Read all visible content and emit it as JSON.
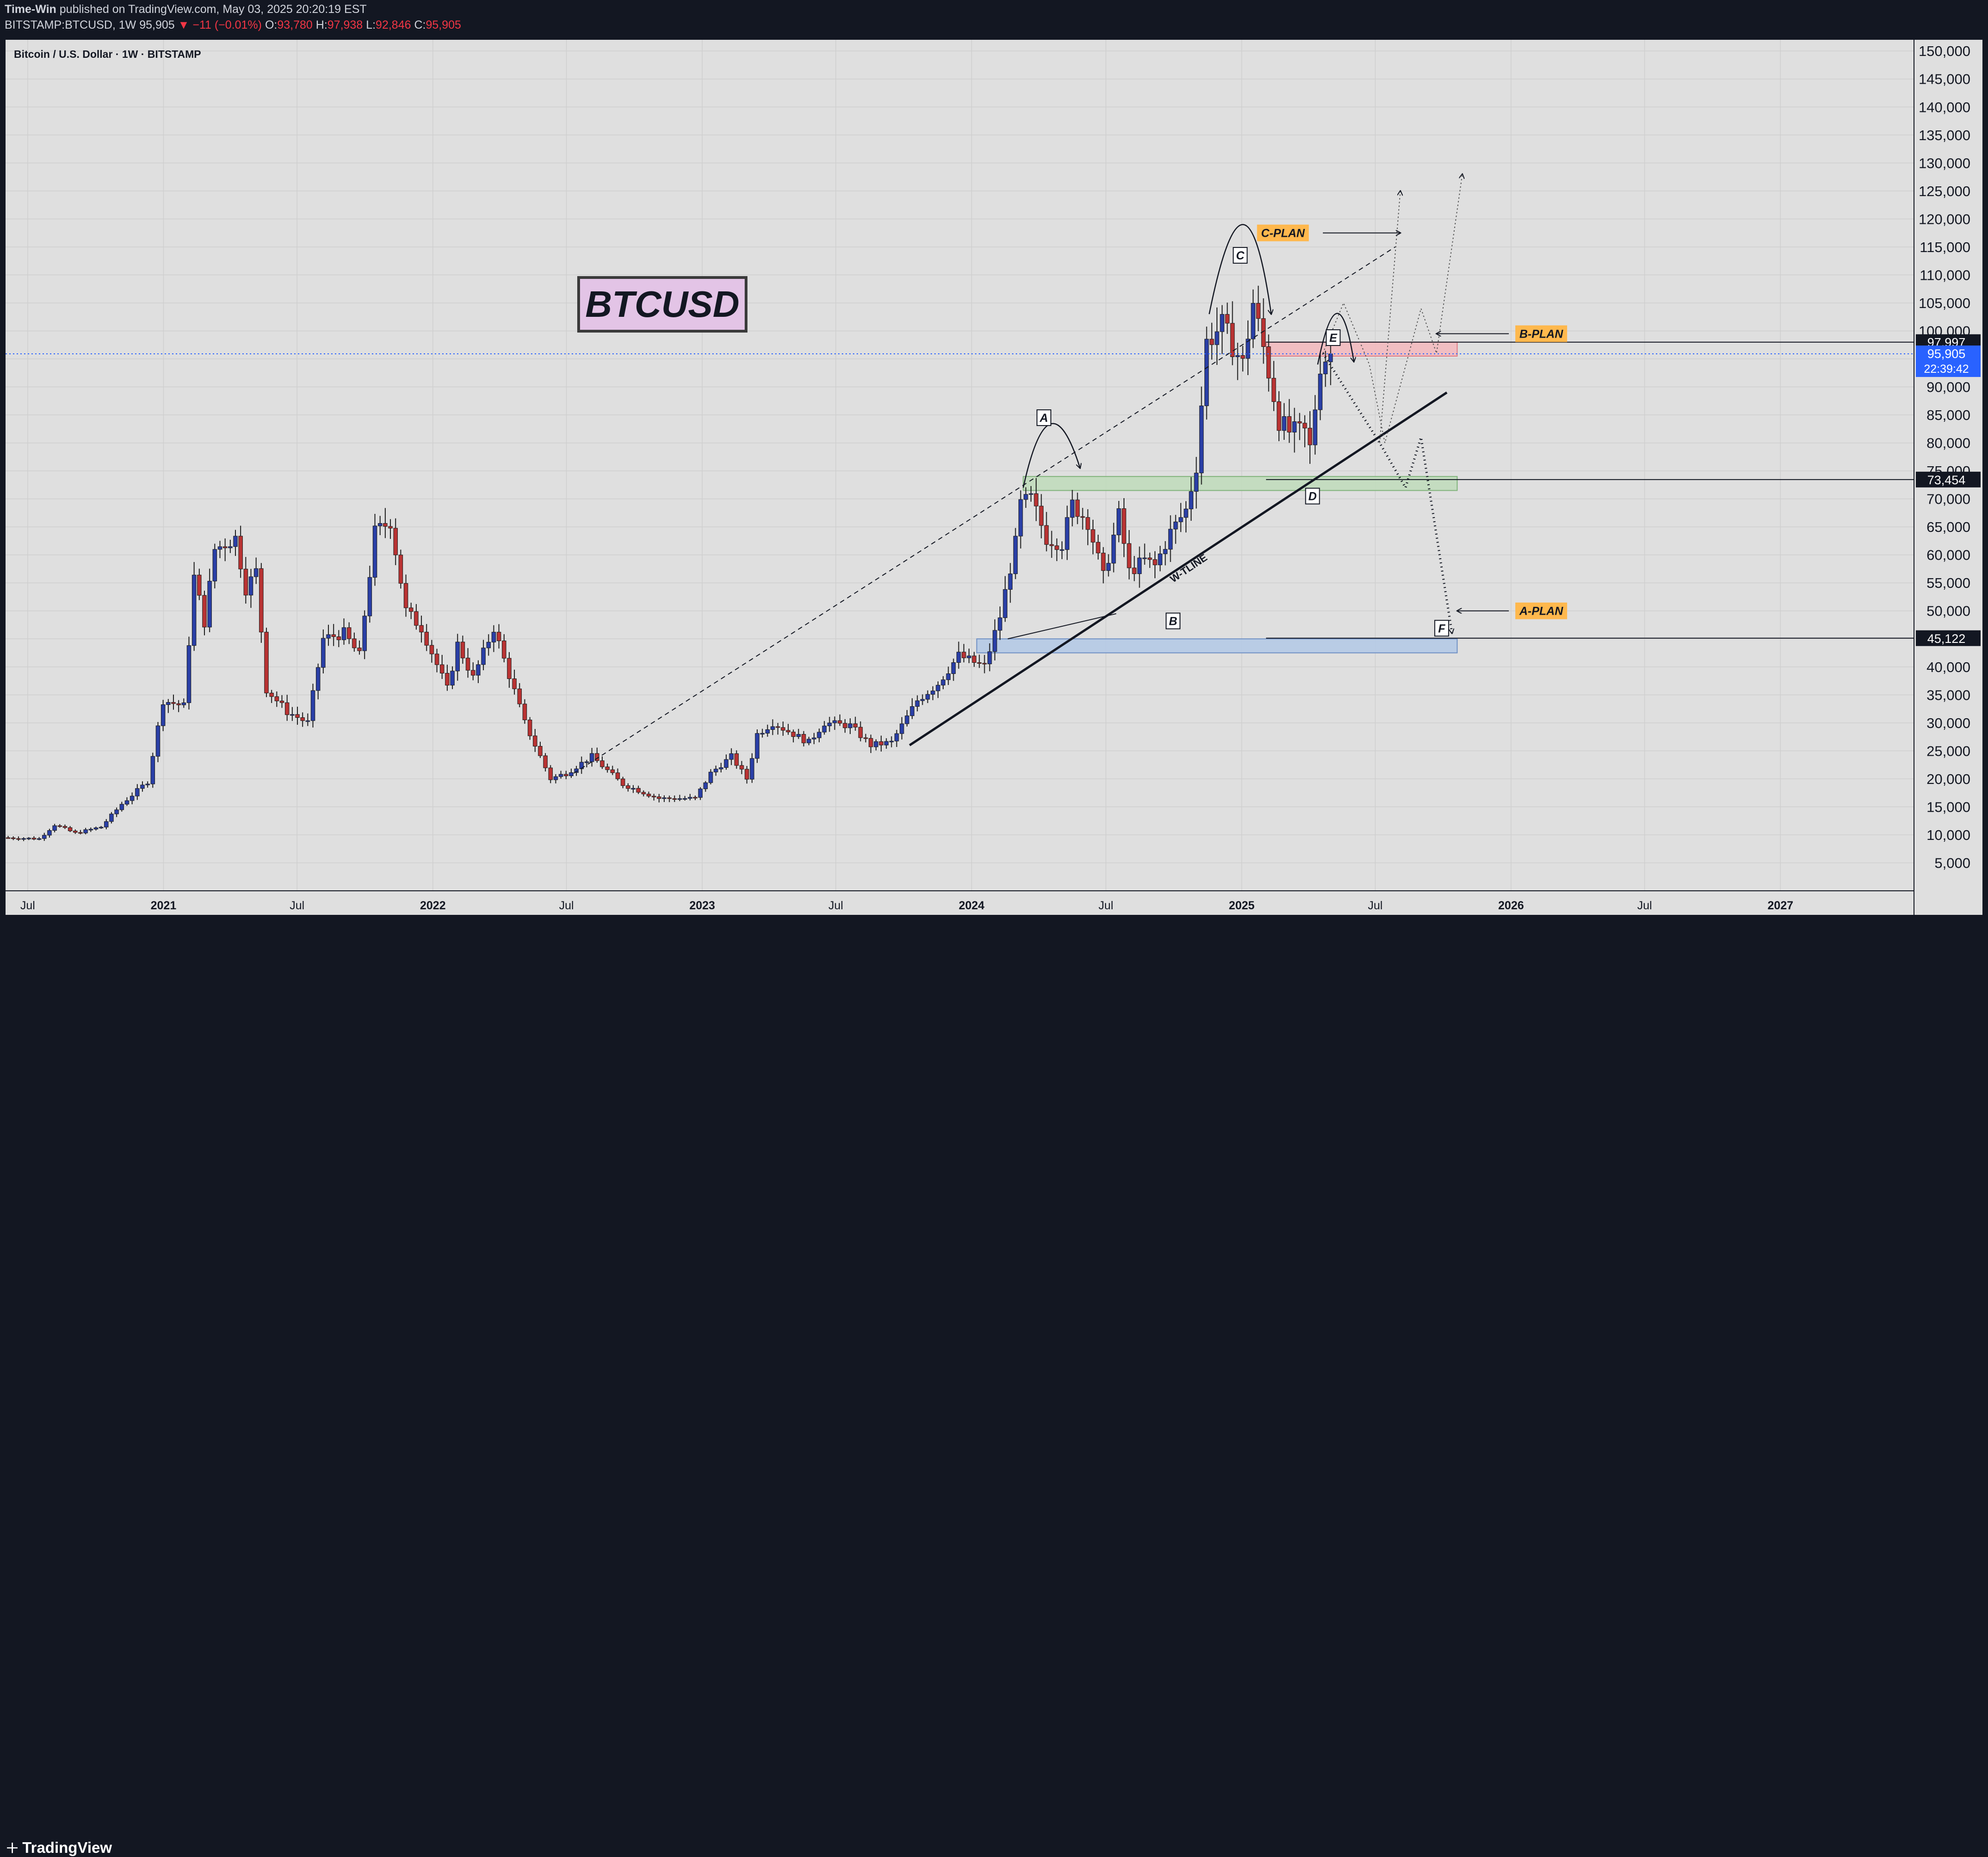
{
  "header": {
    "author": "Time-Win",
    "published": "published on TradingView.com, May 03, 2025 20:20:19 EST",
    "symbol": "BITSTAMP:BTCUSD, 1W",
    "last": "95,905",
    "change": "▼ −11 (−0.01%)",
    "o_label": "O:",
    "o_value": "93,780",
    "h_label": "H:",
    "h_value": "97,938",
    "l_label": "L:",
    "l_value": "92,846",
    "c_label": "C:",
    "c_value": "95,905"
  },
  "footer": {
    "brand": "TradingView"
  },
  "colors": {
    "background": "#dfdfdf",
    "bull": "#2a3fa6",
    "bear": "#b93333",
    "zone_red": "#f4b9bd",
    "zone_green": "#bfdcbb",
    "zone_blue": "#b3c9e6",
    "plan_label": "#ffb84d",
    "price_tag": "#2962ff"
  },
  "chart_data": {
    "type": "candlestick",
    "title": "Bitcoin / U.S. Dollar · 1W · BITSTAMP",
    "xrange": [
      "2020-06",
      "2027-07"
    ],
    "ylim": [
      0,
      152000
    ],
    "y_ticks": [
      5000,
      10000,
      15000,
      20000,
      25000,
      30000,
      35000,
      40000,
      45000,
      50000,
      55000,
      60000,
      65000,
      70000,
      75000,
      80000,
      85000,
      90000,
      95000,
      100000,
      105000,
      110000,
      115000,
      120000,
      125000,
      130000,
      135000,
      140000,
      145000,
      150000
    ],
    "x_ticks": [
      {
        "label": "Jul",
        "t": "2020-07",
        "year": false
      },
      {
        "label": "2021",
        "t": "2021-01",
        "year": true
      },
      {
        "label": "Jul",
        "t": "2021-07",
        "year": false
      },
      {
        "label": "2022",
        "t": "2022-01",
        "year": true
      },
      {
        "label": "Jul",
        "t": "2022-07",
        "year": false
      },
      {
        "label": "2023",
        "t": "2023-01",
        "year": true
      },
      {
        "label": "Jul",
        "t": "2023-07",
        "year": false
      },
      {
        "label": "2024",
        "t": "2024-01",
        "year": true
      },
      {
        "label": "Jul",
        "t": "2024-07",
        "year": false
      },
      {
        "label": "2025",
        "t": "2025-01",
        "year": true
      },
      {
        "label": "Jul",
        "t": "2025-07",
        "year": false
      },
      {
        "label": "2026",
        "t": "2026-01",
        "year": true
      },
      {
        "label": "Jul",
        "t": "2026-07",
        "year": false
      },
      {
        "label": "2027",
        "t": "2027-01",
        "year": true
      }
    ],
    "price_path": [
      [
        "2020-06-01",
        9500
      ],
      [
        "2020-07-20",
        9300
      ],
      [
        "2020-08-10",
        11800
      ],
      [
        "2020-09-07",
        10300
      ],
      [
        "2020-10-12",
        11400
      ],
      [
        "2020-11-09",
        15500
      ],
      [
        "2020-12-14",
        19500
      ],
      [
        "2021-01-04",
        34000
      ],
      [
        "2021-02-01",
        33000
      ],
      [
        "2021-02-15",
        56000
      ],
      [
        "2021-03-01",
        48000
      ],
      [
        "2021-03-15",
        61000
      ],
      [
        "2021-04-12",
        63000
      ],
      [
        "2021-04-26",
        54000
      ],
      [
        "2021-05-10",
        57000
      ],
      [
        "2021-05-24",
        36000
      ],
      [
        "2021-06-21",
        32000
      ],
      [
        "2021-07-19",
        30000
      ],
      [
        "2021-08-09",
        45000
      ],
      [
        "2021-09-06",
        46000
      ],
      [
        "2021-09-27",
        42000
      ],
      [
        "2021-10-18",
        64000
      ],
      [
        "2021-11-08",
        66000
      ],
      [
        "2021-11-29",
        50000
      ],
      [
        "2021-12-20",
        47000
      ],
      [
        "2022-01-24",
        36000
      ],
      [
        "2022-02-07",
        44000
      ],
      [
        "2022-02-28",
        38000
      ],
      [
        "2022-03-28",
        47000
      ],
      [
        "2022-05-09",
        30000
      ],
      [
        "2022-06-13",
        20000
      ],
      [
        "2022-07-04",
        21000
      ],
      [
        "2022-08-08",
        24000
      ],
      [
        "2022-09-19",
        19000
      ],
      [
        "2022-11-07",
        16500
      ],
      [
        "2022-12-26",
        16500
      ],
      [
        "2023-01-16",
        21000
      ],
      [
        "2023-02-13",
        24000
      ],
      [
        "2023-03-06",
        20000
      ],
      [
        "2023-03-20",
        28000
      ],
      [
        "2023-04-10",
        30000
      ],
      [
        "2023-05-29",
        26500
      ],
      [
        "2023-06-19",
        30000
      ],
      [
        "2023-07-24",
        29500
      ],
      [
        "2023-08-21",
        26000
      ],
      [
        "2023-09-18",
        26500
      ],
      [
        "2023-10-23",
        34000
      ],
      [
        "2023-11-20",
        37000
      ],
      [
        "2023-12-18",
        42000
      ],
      [
        "2024-01-22",
        40000
      ],
      [
        "2024-02-12",
        49000
      ],
      [
        "2024-03-04",
        62000
      ],
      [
        "2024-03-11",
        69000
      ],
      [
        "2024-03-25",
        70000
      ],
      [
        "2024-04-15",
        63000
      ],
      [
        "2024-05-06",
        62000
      ],
      [
        "2024-05-20",
        69000
      ],
      [
        "2024-06-10",
        66000
      ],
      [
        "2024-07-01",
        56000
      ],
      [
        "2024-07-22",
        67000
      ],
      [
        "2024-08-05",
        57000
      ],
      [
        "2024-08-26",
        59000
      ],
      [
        "2024-09-09",
        58000
      ],
      [
        "2024-09-30",
        64000
      ],
      [
        "2024-10-21",
        68000
      ],
      [
        "2024-11-04",
        76000
      ],
      [
        "2024-11-18",
        98000
      ],
      [
        "2024-12-09",
        101000
      ],
      [
        "2025-01-06",
        94000
      ],
      [
        "2025-01-20",
        105000
      ],
      [
        "2025-02-03",
        97000
      ],
      [
        "2025-02-24",
        84000
      ],
      [
        "2025-03-10",
        82000
      ],
      [
        "2025-03-31",
        82000
      ],
      [
        "2025-04-07",
        79000
      ],
      [
        "2025-04-21",
        94000
      ],
      [
        "2025-05-03",
        95905
      ]
    ],
    "levels": [
      {
        "label": "97,997",
        "value": 97997
      },
      {
        "label": "73,454",
        "value": 73454
      },
      {
        "label": "45,122",
        "value": 45122
      }
    ],
    "current_price": {
      "label": "95,905",
      "value": 95905,
      "countdown": "22:39:42"
    },
    "zones": [
      {
        "name": "red",
        "from": "2025-02-03",
        "to": "2025-10-20",
        "low": 95500,
        "high": 98000
      },
      {
        "name": "green",
        "from": "2024-03-11",
        "to": "2025-10-20",
        "low": 71500,
        "high": 74000
      },
      {
        "name": "blue",
        "from": "2024-01-08",
        "to": "2025-10-20",
        "low": 42500,
        "high": 45000
      }
    ],
    "annotations": {
      "stamp": "BTCUSD",
      "wline_label": "W-TLINE",
      "points": [
        "A",
        "B",
        "C",
        "D",
        "E",
        "F"
      ],
      "plans": [
        "C-PLAN",
        "B-PLAN",
        "A-PLAN"
      ]
    }
  }
}
